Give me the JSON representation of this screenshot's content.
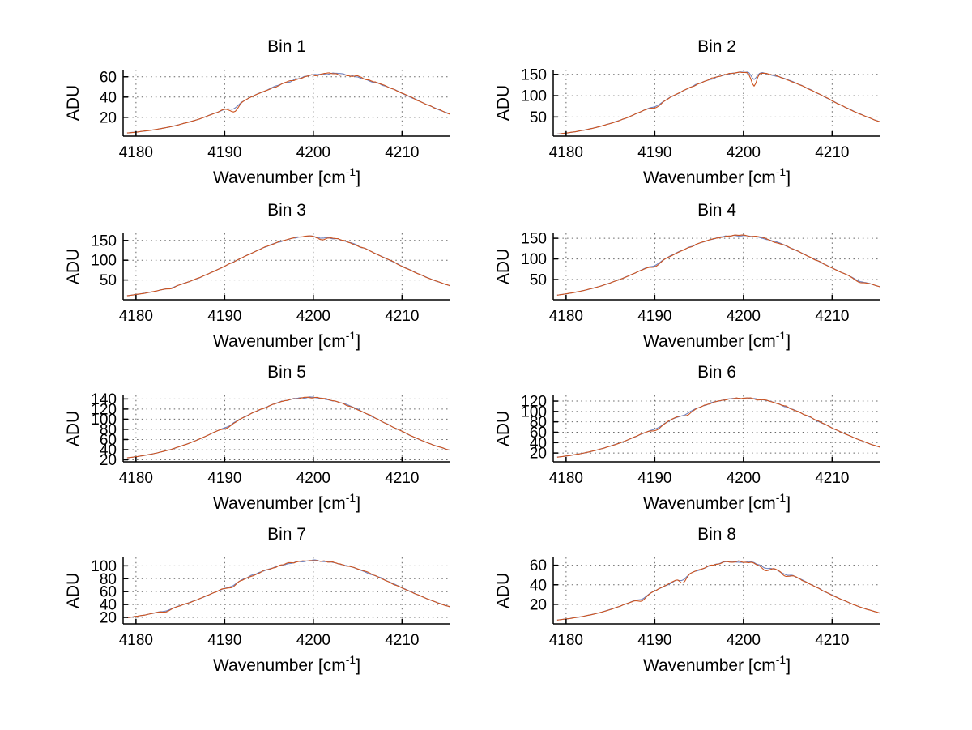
{
  "figure": {
    "background": "#ffffff",
    "grid_color": "#666666",
    "axis_color": "#000000",
    "text_color": "#000000",
    "grid_style": "dotted",
    "layout": "4 rows x 2 columns of subplots"
  },
  "labels": {
    "xlabel_base": "Wavenumber [cm",
    "xlabel_sup": "-1",
    "xlabel_close": "]",
    "ylabel": "ADU"
  },
  "series_colors": {
    "under_line": "#7083bf",
    "over_line": "#cd5420"
  },
  "chart_data": [
    {
      "type": "line",
      "title": "Bin 1",
      "xlabel": "Wavenumber [cm^-1]",
      "ylabel": "ADU",
      "x_start": 4179,
      "x_step": 1,
      "xlim": [
        4178.55,
        4215.45
      ],
      "xticks": [
        4180,
        4190,
        4200,
        4210
      ],
      "ylim": [
        1.5,
        67
      ],
      "yticks": [
        20,
        40,
        60
      ],
      "noise": 1.2,
      "dips": [
        {
          "x": 4191.1,
          "d": 6.5,
          "w": 0.45
        }
      ],
      "y": [
        4.7,
        5.5,
        6.5,
        7.7,
        9.2,
        11.0,
        13.1,
        15.4,
        18.1,
        21.2,
        24.5,
        28.1,
        31.8,
        35.8,
        39.8,
        43.8,
        47.7,
        51.3,
        54.6,
        57.5,
        59.8,
        61.6,
        62.6,
        63.0,
        62.6,
        61.6,
        59.8,
        57.5,
        54.6,
        51.3,
        47.7,
        43.8,
        39.8,
        35.8,
        31.8,
        28.1,
        24.5
      ]
    },
    {
      "type": "line",
      "title": "Bin 2",
      "xlabel": "Wavenumber [cm^-1]",
      "ylabel": "ADU",
      "x_start": 4179,
      "x_step": 1,
      "xlim": [
        4178.55,
        4215.45
      ],
      "xticks": [
        4180,
        4190,
        4200,
        4210
      ],
      "ylim": [
        5,
        161
      ],
      "yticks": [
        50,
        100,
        150
      ],
      "noise": 2.4,
      "dips": [
        {
          "x": 4190.2,
          "d": 7,
          "w": 0.5
        },
        {
          "x": 4201.2,
          "d": 33,
          "w": 0.3
        }
      ],
      "y": [
        9.8,
        12.2,
        15.2,
        18.9,
        23.3,
        28.6,
        34.6,
        41.6,
        49.5,
        58.2,
        67.6,
        77.6,
        88.0,
        98.6,
        109.1,
        119.2,
        128.7,
        137.1,
        144.3,
        149.9,
        153.8,
        155.8,
        155.8,
        153.8,
        149.9,
        144.3,
        137.1,
        128.7,
        119.2,
        109.1,
        98.6,
        88.0,
        77.6,
        67.6,
        58.2,
        49.5,
        41.6
      ]
    },
    {
      "type": "line",
      "title": "Bin 3",
      "xlabel": "Wavenumber [cm^-1]",
      "ylabel": "ADU",
      "x_start": 4179,
      "x_step": 1,
      "xlim": [
        4178.55,
        4215.45
      ],
      "xticks": [
        4180,
        4190,
        4200,
        4210
      ],
      "ylim": [
        0,
        168
      ],
      "yticks": [
        50,
        100,
        150
      ],
      "noise": 2.4,
      "dips": [
        {
          "x": 4184.0,
          "d": 3,
          "w": 0.4
        },
        {
          "x": 4200.9,
          "d": 8,
          "w": 0.4
        }
      ],
      "y": [
        10.3,
        13.1,
        16.6,
        20.7,
        25.8,
        31.6,
        38.4,
        46.1,
        54.7,
        64.1,
        74.2,
        84.9,
        95.8,
        106.8,
        117.6,
        127.8,
        137.1,
        145.3,
        151.9,
        156.9,
        160.0,
        161.0,
        160.0,
        156.9,
        151.9,
        145.3,
        137.1,
        127.8,
        117.6,
        106.8,
        95.8,
        84.9,
        74.2,
        64.1,
        54.7,
        46.1,
        38.4
      ]
    },
    {
      "type": "line",
      "title": "Bin 4",
      "xlabel": "Wavenumber [cm^-1]",
      "ylabel": "ADU",
      "x_start": 4179,
      "x_step": 1,
      "xlim": [
        4178.55,
        4215.45
      ],
      "xticks": [
        4180,
        4190,
        4200,
        4210
      ],
      "ylim": [
        1,
        162
      ],
      "yticks": [
        50,
        100,
        150
      ],
      "noise": 2.2,
      "dips": [
        {
          "x": 4190.1,
          "d": 8,
          "w": 0.5
        },
        {
          "x": 4213.0,
          "d": 6,
          "w": 0.5
        }
      ],
      "y": [
        12.3,
        15.3,
        19.0,
        23.5,
        28.7,
        34.9,
        41.9,
        49.8,
        58.5,
        68.0,
        78.1,
        88.6,
        99.2,
        109.8,
        120.0,
        129.5,
        138.0,
        145.2,
        150.9,
        154.8,
        156.8,
        156.8,
        154.8,
        150.9,
        145.2,
        138.0,
        129.5,
        120.0,
        109.8,
        99.2,
        88.6,
        78.1,
        68.0,
        58.5,
        49.8,
        41.9,
        34.9
      ]
    },
    {
      "type": "line",
      "title": "Bin 5",
      "xlabel": "Wavenumber [cm^-1]",
      "ylabel": "ADU",
      "x_start": 4179,
      "x_step": 1,
      "xlim": [
        4178.55,
        4215.45
      ],
      "xticks": [
        4180,
        4190,
        4200,
        4210
      ],
      "ylim": [
        16,
        147
      ],
      "yticks": [
        20,
        40,
        60,
        80,
        100,
        120,
        140
      ],
      "noise": 1.7,
      "dips": [
        {
          "x": 4190.4,
          "d": 4,
          "w": 0.5
        }
      ],
      "y": [
        23.9,
        26.1,
        28.8,
        32.1,
        36.2,
        40.9,
        46.4,
        52.7,
        59.7,
        67.5,
        75.8,
        84.5,
        93.4,
        102.4,
        111.1,
        119.2,
        126.5,
        132.8,
        137.7,
        141.1,
        142.8,
        142.8,
        141.1,
        137.7,
        132.8,
        126.5,
        119.2,
        111.1,
        102.4,
        93.4,
        84.5,
        75.8,
        67.5,
        59.7,
        52.7,
        46.4,
        40.9
      ]
    },
    {
      "type": "line",
      "title": "Bin 6",
      "xlabel": "Wavenumber [cm^-1]",
      "ylabel": "ADU",
      "x_start": 4179,
      "x_step": 1,
      "xlim": [
        4178.55,
        4215.45
      ],
      "xticks": [
        4180,
        4190,
        4200,
        4210
      ],
      "ylim": [
        3,
        131
      ],
      "yticks": [
        20,
        40,
        60,
        80,
        100,
        120
      ],
      "noise": 2.0,
      "dips": [
        {
          "x": 4190.2,
          "d": 6,
          "w": 0.5
        },
        {
          "x": 4193.6,
          "d": 5,
          "w": 0.4
        }
      ],
      "y": [
        12.0,
        14.1,
        16.8,
        19.9,
        23.7,
        28.2,
        33.3,
        39.1,
        45.6,
        52.7,
        60.4,
        68.4,
        76.7,
        85.0,
        93.2,
        100.9,
        108.0,
        114.1,
        119.2,
        122.9,
        125.2,
        126.0,
        125.2,
        122.9,
        119.2,
        114.1,
        108.0,
        100.9,
        93.2,
        85.0,
        76.7,
        68.4,
        60.4,
        52.7,
        45.6,
        39.1,
        33.3
      ]
    },
    {
      "type": "line",
      "title": "Bin 7",
      "xlabel": "Wavenumber [cm^-1]",
      "ylabel": "ADU",
      "x_start": 4179,
      "x_step": 1,
      "xlim": [
        4178.55,
        4215.45
      ],
      "xticks": [
        4180,
        4190,
        4200,
        4210
      ],
      "ylim": [
        10,
        113
      ],
      "yticks": [
        20,
        40,
        60,
        80,
        100
      ],
      "noise": 1.7,
      "dips": [
        {
          "x": 4183.4,
          "d": 3,
          "w": 0.4
        },
        {
          "x": 4190.8,
          "d": 4,
          "w": 0.5
        }
      ],
      "y": [
        19.5,
        21.5,
        23.8,
        26.7,
        30.0,
        33.8,
        38.2,
        42.9,
        48.1,
        53.8,
        59.7,
        65.8,
        72.1,
        78.3,
        84.3,
        89.9,
        95.1,
        99.5,
        103.1,
        105.8,
        107.4,
        108.0,
        107.4,
        105.8,
        103.1,
        99.5,
        95.1,
        89.9,
        84.3,
        78.3,
        72.1,
        65.8,
        59.7,
        53.8,
        48.1,
        42.9,
        38.2
      ]
    },
    {
      "type": "line",
      "title": "Bin 8",
      "xlabel": "Wavenumber [cm^-1]",
      "ylabel": "ADU",
      "x_start": 4179,
      "x_step": 1,
      "xlim": [
        4178.55,
        4215.45
      ],
      "xticks": [
        4180,
        4190,
        4200,
        4210
      ],
      "ylim": [
        0,
        68
      ],
      "yticks": [
        20,
        40,
        60
      ],
      "noise": 1.3,
      "dips": [
        {
          "x": 4188.6,
          "d": 4,
          "w": 0.4
        },
        {
          "x": 4193.2,
          "d": 6,
          "w": 0.35
        },
        {
          "x": 4202.6,
          "d": 5,
          "w": 0.5
        },
        {
          "x": 4204.6,
          "d": 4,
          "w": 0.4
        }
      ],
      "y": [
        4.0,
        5.0,
        6.3,
        7.8,
        9.7,
        12.0,
        14.7,
        17.8,
        21.3,
        25.1,
        29.3,
        33.7,
        38.3,
        42.9,
        47.4,
        51.6,
        55.4,
        58.6,
        61.2,
        63.0,
        63.9,
        63.9,
        63.0,
        61.2,
        58.6,
        55.4,
        51.6,
        47.4,
        42.9,
        38.3,
        33.7,
        29.3,
        25.1,
        21.3,
        17.8,
        14.7,
        12.0
      ]
    }
  ]
}
